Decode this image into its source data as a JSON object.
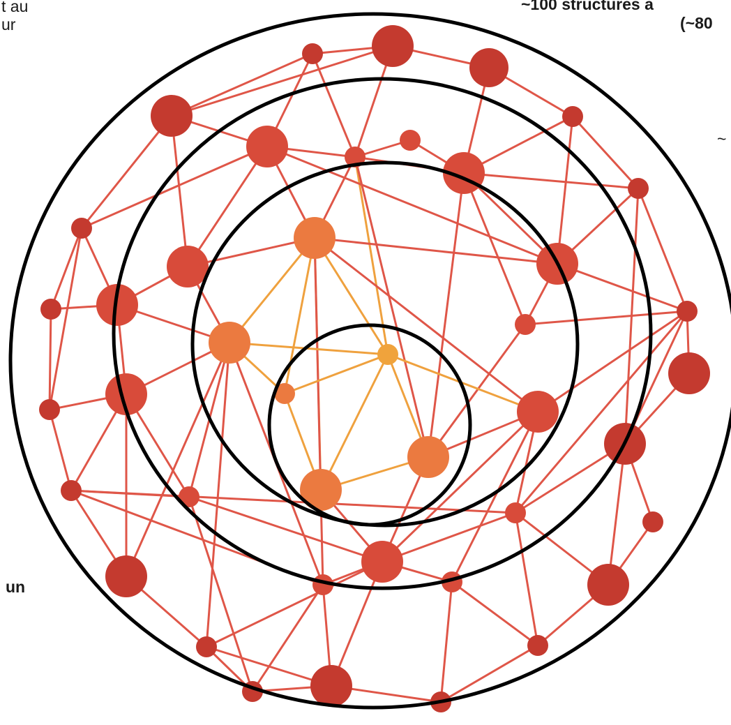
{
  "labels": {
    "top_left_1": "t au",
    "top_left_2": "ur",
    "top_right_1": "~100 structures a",
    "top_right_2": "(~80",
    "right_tilde": "~",
    "bottom_left": "un"
  },
  "colors": {
    "ring": "#000000",
    "edge": "#df5648",
    "edge_center": "#efa13e",
    "node_outer": "#c43a2f",
    "node_mid": "#d84b3a",
    "node_inner": "#eb7a40",
    "node_core": "#f0a33c"
  }
}
